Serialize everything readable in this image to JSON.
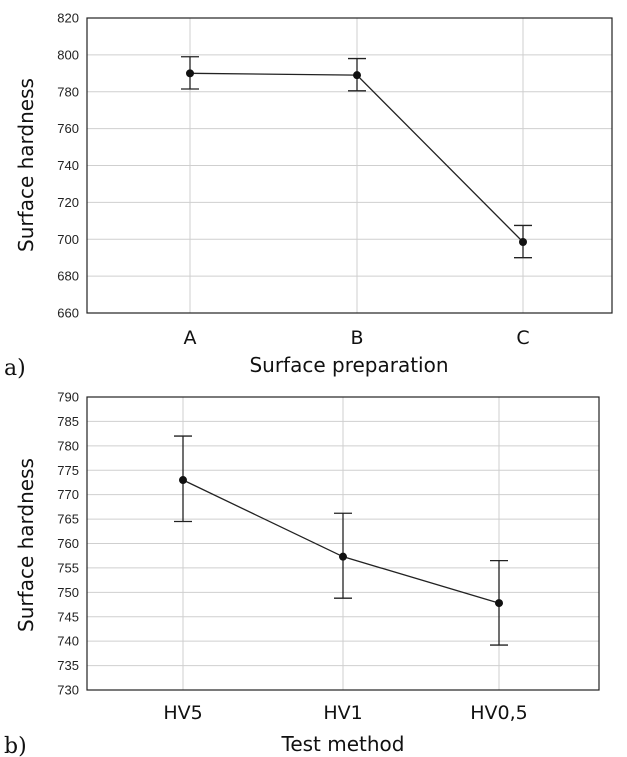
{
  "chart_data": [
    {
      "type": "line",
      "panel_label": "a)",
      "xlabel": "Surface preparation",
      "ylabel": "Surface hardness",
      "categories": [
        "A",
        "B",
        "C"
      ],
      "ylim": [
        660,
        820
      ],
      "yticks": [
        660,
        680,
        700,
        720,
        740,
        760,
        780,
        800,
        820
      ],
      "grid": true,
      "series": [
        {
          "values": [
            790,
            789,
            698.5
          ],
          "error_low": [
            781.5,
            780.5,
            690
          ],
          "error_high": [
            799,
            798,
            707.5
          ]
        }
      ]
    },
    {
      "type": "line",
      "panel_label": "b)",
      "xlabel": "Test method",
      "ylabel": "Surface hardness",
      "categories": [
        "HV5",
        "HV1",
        "HV0,5"
      ],
      "ylim": [
        730,
        790
      ],
      "yticks": [
        730,
        735,
        740,
        745,
        750,
        755,
        760,
        765,
        770,
        775,
        780,
        785,
        790
      ],
      "grid": true,
      "series": [
        {
          "values": [
            773,
            757.3,
            747.8
          ],
          "error_low": [
            764.5,
            748.8,
            739.2
          ],
          "error_high": [
            782,
            766.2,
            756.5
          ]
        }
      ]
    }
  ]
}
